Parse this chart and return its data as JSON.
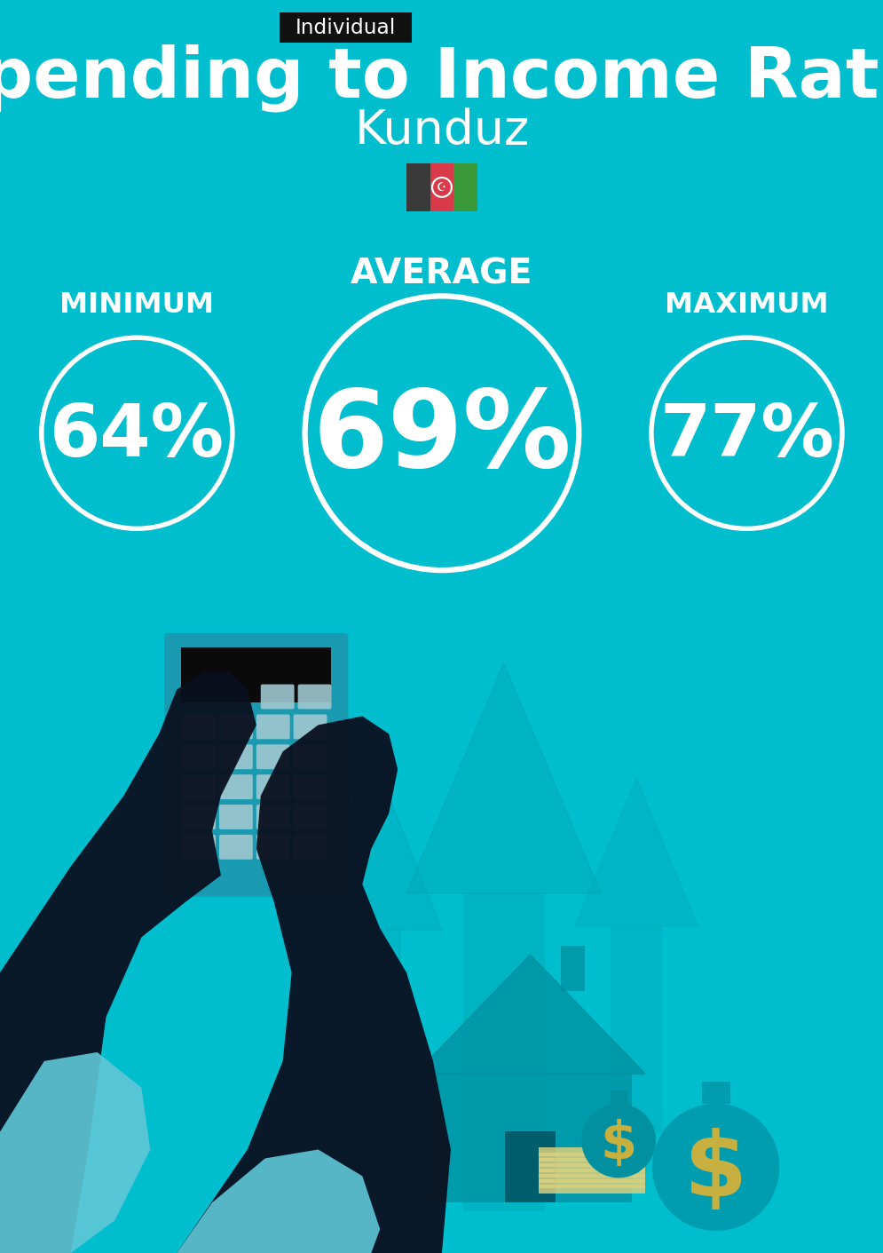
{
  "bg_color": "#00BECE",
  "title": "Spending to Income Ratio",
  "subtitle": "Kunduz",
  "tag_label": "Individual",
  "tag_bg": "#111111",
  "tag_text_color": "#ffffff",
  "title_color": "#ffffff",
  "subtitle_color": "#ffffff",
  "min_label": "MINIMUM",
  "avg_label": "AVERAGE",
  "max_label": "MAXIMUM",
  "min_value": "64%",
  "avg_value": "69%",
  "max_value": "77%",
  "circle_color": "#ffffff",
  "circle_text_color": "#ffffff",
  "label_color": "#ffffff",
  "fig_width": 7.72,
  "fig_height": 10.94,
  "dpi": 129,
  "flag_colors": [
    "#3a3a3a",
    "#d93a4a",
    "#3a9a3a"
  ],
  "arrow_color": "#00A8B8",
  "house_color": "#0090A0",
  "calc_body_color": "#1A9AB0",
  "calc_screen_color": "#0A0A0A",
  "calc_btn_color": "#A0C8D0",
  "hand_color": "#0A1020",
  "sleeve_color": "#60C8D8",
  "moneybag_color": "#0090A0",
  "dollar_color": "#C8B040"
}
